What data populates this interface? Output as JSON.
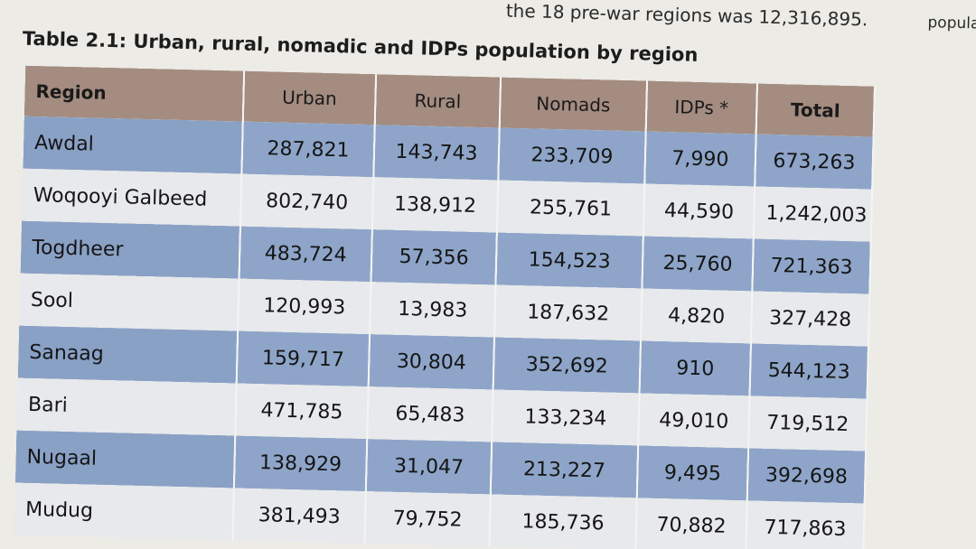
{
  "previous_text": "the 18 pre-war regions was 12,316,895.",
  "previous_text_corner": "population in urban",
  "table": {
    "title": "Table 2.1: Urban, rural, nomadic and IDPs population by region",
    "headers": [
      "Region",
      "Urban",
      "Rural",
      "Nomads",
      "IDPs *",
      "Total"
    ],
    "rows": [
      [
        "Awdal",
        "287,821",
        "143,743",
        "233,709",
        "7,990",
        "673,263"
      ],
      [
        "Woqooyi Galbeed",
        "802,740",
        "138,912",
        "255,761",
        "44,590",
        "1,242,003"
      ],
      [
        "Togdheer",
        "483,724",
        "57,356",
        "154,523",
        "25,760",
        "721,363"
      ],
      [
        "Sool",
        "120,993",
        "13,983",
        "187,632",
        "4,820",
        "327,428"
      ],
      [
        "Sanaag",
        "159,717",
        "30,804",
        "352,692",
        "910",
        "544,123"
      ],
      [
        "Bari",
        "471,785",
        "65,483",
        "133,234",
        "49,010",
        "719,512"
      ],
      [
        "Nugaal",
        "138,929",
        "31,047",
        "213,227",
        "9,495",
        "392,698"
      ],
      [
        "Mudug",
        "381,493",
        "79,752",
        "185,736",
        "70,882",
        "717,863"
      ]
    ]
  }
}
